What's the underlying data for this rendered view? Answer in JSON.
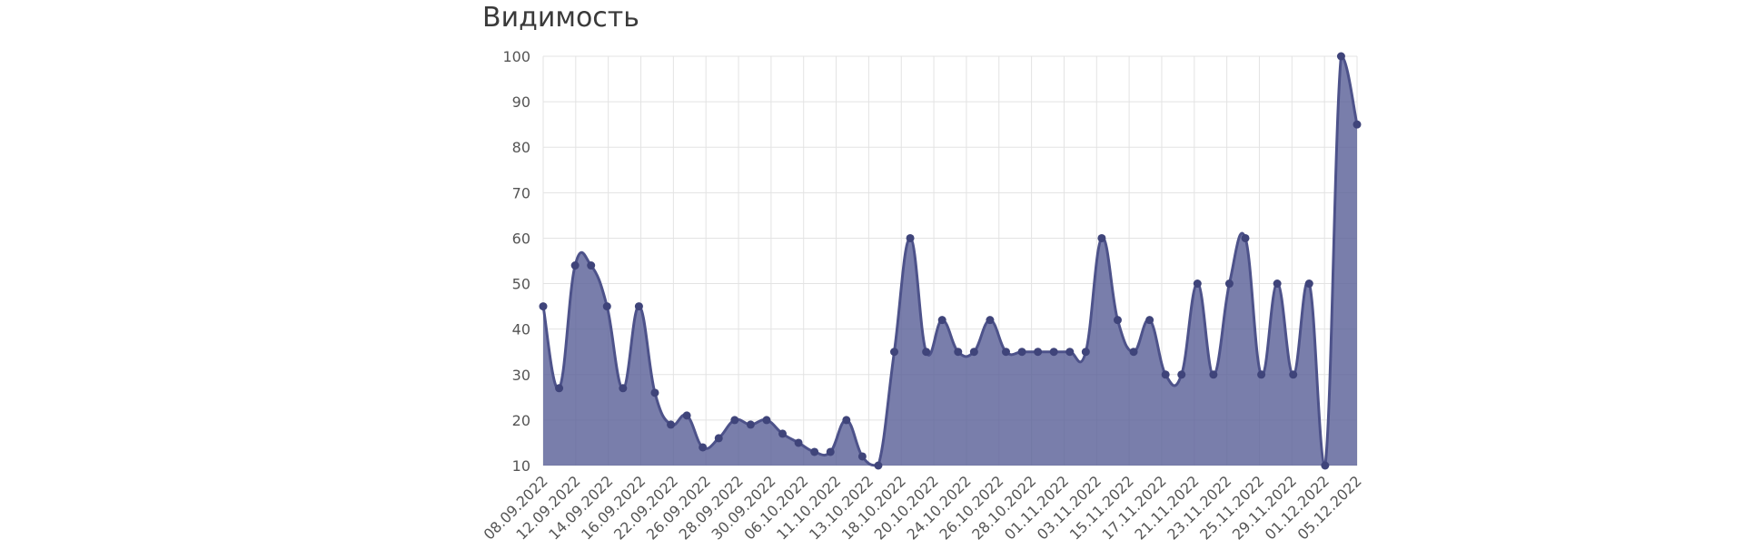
{
  "chart_data": {
    "type": "area",
    "title": "Видимость",
    "xlabel": "",
    "ylabel": "",
    "ylim": [
      10,
      100
    ],
    "yticks": [
      100,
      90,
      80,
      70,
      60,
      50,
      40,
      30,
      20,
      10
    ],
    "grid": true,
    "legend": "none",
    "xticks": [
      "08.09.2022",
      "12.09.2022",
      "14.09.2022",
      "16.09.2022",
      "22.09.2022",
      "26.09.2022",
      "28.09.2022",
      "30.09.2022",
      "06.10.2022",
      "11.10.2022",
      "13.10.2022",
      "18.10.2022",
      "20.10.2022",
      "24.10.2022",
      "26.10.2022",
      "28.10.2022",
      "01.11.2022",
      "03.11.2022",
      "15.11.2022",
      "17.11.2022",
      "21.11.2022",
      "23.11.2022",
      "25.11.2022",
      "29.11.2022",
      "01.12.2022",
      "05.12.2022"
    ],
    "values": [
      45,
      27,
      54,
      54,
      45,
      27,
      45,
      26,
      19,
      21,
      14,
      16,
      20,
      19,
      20,
      17,
      15,
      13,
      13,
      20,
      12,
      10,
      35,
      60,
      35,
      42,
      35,
      35,
      42,
      35,
      35,
      35,
      35,
      35,
      35,
      60,
      42,
      35,
      42,
      30,
      30,
      50,
      30,
      50,
      60,
      30,
      50,
      30,
      50,
      10,
      100,
      85
    ],
    "colors": {
      "fill": "#5c6199",
      "line": "#4d528a",
      "point": "#3f447a",
      "grid": "#e3e3e3"
    }
  }
}
